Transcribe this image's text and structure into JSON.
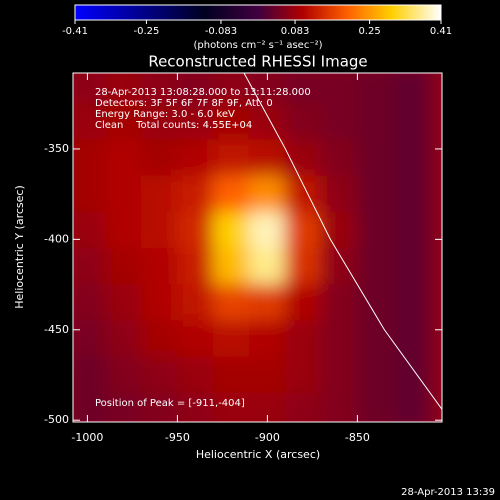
{
  "chart_data": {
    "type": "heatmap",
    "title": "Reconstructed RHESSI Image",
    "xlabel": "Heliocentric X (arcsec)",
    "ylabel": "Heliocentric Y (arcsec)",
    "annotations": [
      "28-Apr-2013 13:08:28.000 to 13:11:28.000",
      "Detectors: 3F 5F 6F 7F 8F 9F, Att: 0",
      "Energy Range: 3.0 - 6.0 keV",
      "Clean    Total counts: 4.55E+04"
    ],
    "peak_label": "Position of Peak = [-911,-404]",
    "footer": "28-Apr-2013 13:39",
    "colorbar": {
      "label": "(photons cm⁻² s⁻¹ asec⁻²)",
      "lim": [
        -0.41,
        0.41
      ],
      "ticks": [
        -0.41,
        -0.25,
        -0.083,
        0.083,
        0.25,
        0.41
      ]
    },
    "colorscale": [
      [
        -0.41,
        "#0000ff"
      ],
      [
        -0.12,
        "#000020"
      ],
      [
        0,
        "#400040"
      ],
      [
        0.1,
        "#b00000"
      ],
      [
        0.2,
        "#ff6000"
      ],
      [
        0.3,
        "#ffd000"
      ],
      [
        0.41,
        "#ffffff"
      ]
    ],
    "xlim": [
      -1008,
      -803
    ],
    "ylim": [
      -501,
      -308
    ],
    "xticks": [
      -1000,
      -950,
      -900,
      -850
    ],
    "yticks": [
      -350,
      -400,
      -450,
      -500
    ],
    "x": [
      -1000,
      -980,
      -960,
      -940,
      -920,
      -900,
      -880,
      -860,
      -840,
      -820
    ],
    "y": [
      -315,
      -335,
      -355,
      -375,
      -395,
      -415,
      -435,
      -455,
      -475,
      -495
    ],
    "z": [
      [
        0.07,
        0.08,
        0.07,
        0.06,
        0.07,
        0.06,
        0.05,
        0.05,
        0.04,
        0.03
      ],
      [
        0.08,
        0.09,
        0.08,
        0.08,
        0.09,
        0.08,
        0.06,
        0.05,
        0.04,
        0.03
      ],
      [
        0.09,
        0.1,
        0.09,
        0.1,
        0.12,
        0.11,
        0.08,
        0.06,
        0.04,
        0.03
      ],
      [
        0.09,
        0.1,
        0.11,
        0.13,
        0.2,
        0.24,
        0.12,
        0.07,
        0.04,
        0.03
      ],
      [
        0.08,
        0.1,
        0.11,
        0.14,
        0.3,
        0.38,
        0.16,
        0.08,
        0.04,
        0.03
      ],
      [
        0.07,
        0.09,
        0.1,
        0.13,
        0.28,
        0.36,
        0.15,
        0.07,
        0.04,
        0.03
      ],
      [
        0.06,
        0.08,
        0.1,
        0.12,
        0.17,
        0.16,
        0.1,
        0.06,
        0.04,
        0.03
      ],
      [
        0.05,
        0.07,
        0.09,
        0.1,
        0.11,
        0.1,
        0.08,
        0.06,
        0.04,
        0.03
      ],
      [
        0.04,
        0.06,
        0.07,
        0.08,
        0.09,
        0.09,
        0.08,
        0.06,
        0.04,
        0.03
      ],
      [
        0.04,
        0.05,
        0.06,
        0.07,
        0.08,
        0.08,
        0.07,
        0.06,
        0.04,
        0.03
      ]
    ],
    "limb": {
      "x": [
        -913,
        -890,
        -865,
        -835,
        -803
      ],
      "y": [
        -308,
        -350,
        -400,
        -450,
        -494
      ]
    },
    "limb_color": "#ffffff"
  }
}
